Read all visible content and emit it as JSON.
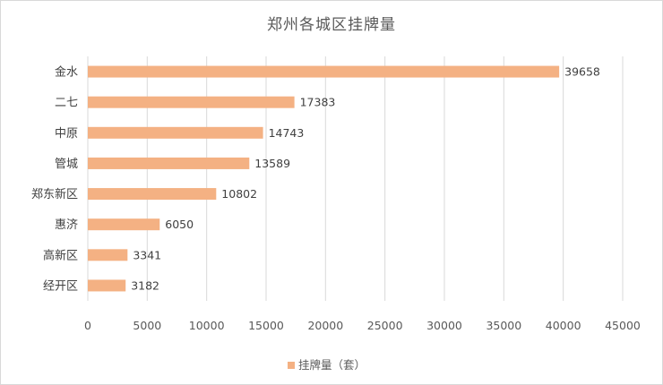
{
  "chart_data": {
    "type": "bar",
    "orientation": "horizontal",
    "title": "郑州各城区挂牌量",
    "categories": [
      "金水",
      "二七",
      "中原",
      "管城",
      "郑东新区",
      "惠济",
      "高新区",
      "经开区"
    ],
    "series": [
      {
        "name": "挂牌量（套）",
        "values": [
          39658,
          17383,
          14743,
          13589,
          10802,
          6050,
          3341,
          3182
        ]
      }
    ],
    "xlim": [
      0,
      45000
    ],
    "xticks": [
      0,
      5000,
      10000,
      15000,
      20000,
      25000,
      30000,
      35000,
      40000,
      45000
    ],
    "data_labels": true,
    "grid": "vertical",
    "legend_position": "bottom",
    "colors": {
      "bar": "#F4B183",
      "grid": "#d9d9d9",
      "text": "#595959"
    }
  }
}
